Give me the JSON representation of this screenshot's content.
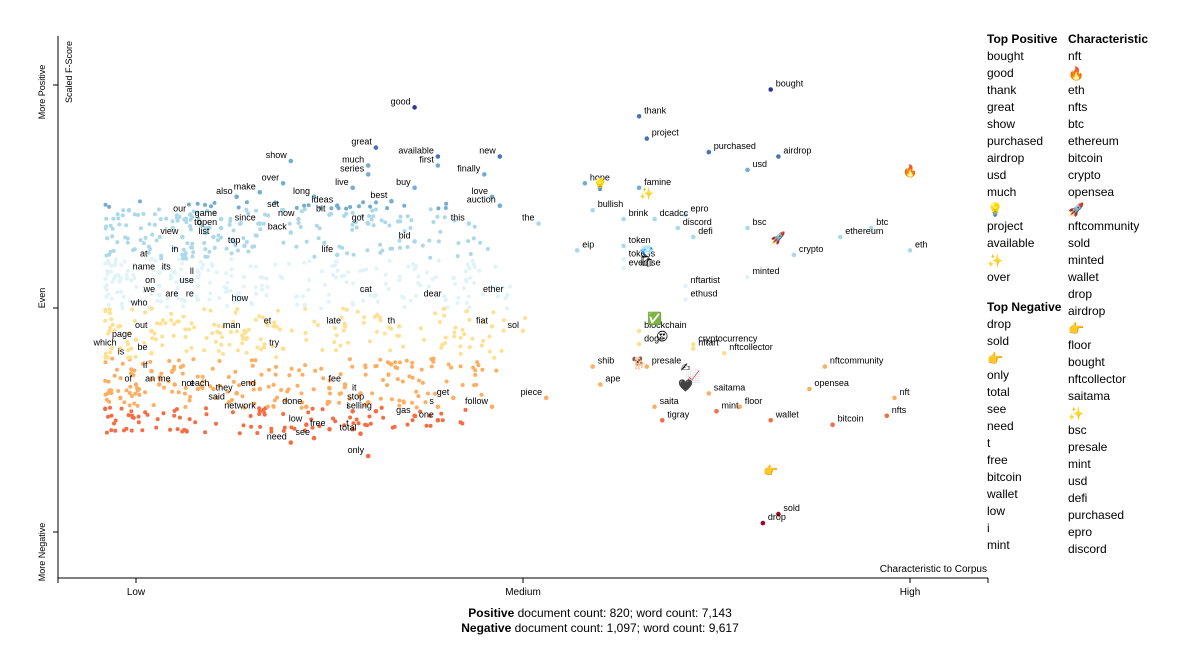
{
  "chart_data": {
    "type": "scatter",
    "title": "",
    "xlabel": "Characteristic to Corpus",
    "ylabel": "Scaled F-Score",
    "x_ticks": [
      "Low",
      "Medium",
      "High"
    ],
    "y_ticks": [
      "More Positive",
      "Even",
      "More Negative"
    ],
    "xlim": [
      0,
      1
    ],
    "ylim": [
      0,
      1
    ],
    "grid": false,
    "color_scale": [
      "#313695",
      "#4575b4",
      "#74add1",
      "#abd9e9",
      "#e0f3f8",
      "#fee090",
      "#fdae61",
      "#f46d43",
      "#d73027",
      "#a50026"
    ],
    "labeled_terms": [
      {
        "term": "good",
        "x": 0.36,
        "y": 0.95
      },
      {
        "term": "bought",
        "x": 0.82,
        "y": 0.99
      },
      {
        "term": "thank",
        "x": 0.65,
        "y": 0.93
      },
      {
        "term": "project",
        "x": 0.66,
        "y": 0.88
      },
      {
        "term": "purchased",
        "x": 0.74,
        "y": 0.85
      },
      {
        "term": "airdrop",
        "x": 0.83,
        "y": 0.84
      },
      {
        "term": "usd",
        "x": 0.79,
        "y": 0.81
      },
      {
        "term": "show",
        "x": 0.2,
        "y": 0.83
      },
      {
        "term": "great",
        "x": 0.31,
        "y": 0.86
      },
      {
        "term": "available",
        "x": 0.39,
        "y": 0.84
      },
      {
        "term": "new",
        "x": 0.47,
        "y": 0.84
      },
      {
        "term": "much",
        "x": 0.3,
        "y": 0.82
      },
      {
        "term": "first",
        "x": 0.39,
        "y": 0.82
      },
      {
        "term": "series",
        "x": 0.3,
        "y": 0.8
      },
      {
        "term": "finally",
        "x": 0.45,
        "y": 0.8
      },
      {
        "term": "over",
        "x": 0.19,
        "y": 0.78
      },
      {
        "term": "hope",
        "x": 0.58,
        "y": 0.78
      },
      {
        "term": "famine",
        "x": 0.65,
        "y": 0.77
      },
      {
        "term": "make",
        "x": 0.16,
        "y": 0.76
      },
      {
        "term": "live",
        "x": 0.28,
        "y": 0.77
      },
      {
        "term": "buy",
        "x": 0.36,
        "y": 0.77
      },
      {
        "term": "also",
        "x": 0.13,
        "y": 0.75
      },
      {
        "term": "long",
        "x": 0.23,
        "y": 0.75
      },
      {
        "term": "love",
        "x": 0.46,
        "y": 0.75
      },
      {
        "term": "ideas",
        "x": 0.26,
        "y": 0.73
      },
      {
        "term": "best",
        "x": 0.33,
        "y": 0.74
      },
      {
        "term": "set",
        "x": 0.19,
        "y": 0.72
      },
      {
        "term": "auction",
        "x": 0.47,
        "y": 0.73
      },
      {
        "term": "bullish",
        "x": 0.59,
        "y": 0.72
      },
      {
        "term": "epro",
        "x": 0.71,
        "y": 0.71
      },
      {
        "term": "our",
        "x": 0.07,
        "y": 0.71
      },
      {
        "term": "bit",
        "x": 0.25,
        "y": 0.71
      },
      {
        "term": "game",
        "x": 0.11,
        "y": 0.7
      },
      {
        "term": "now",
        "x": 0.21,
        "y": 0.7
      },
      {
        "term": "brink",
        "x": 0.63,
        "y": 0.7
      },
      {
        "term": "dcadcc",
        "x": 0.67,
        "y": 0.7
      },
      {
        "term": "since",
        "x": 0.16,
        "y": 0.69
      },
      {
        "term": "got",
        "x": 0.3,
        "y": 0.69
      },
      {
        "term": "this",
        "x": 0.43,
        "y": 0.69
      },
      {
        "term": "the",
        "x": 0.52,
        "y": 0.69
      },
      {
        "term": "to",
        "x": 0.09,
        "y": 0.68
      },
      {
        "term": "open",
        "x": 0.11,
        "y": 0.68
      },
      {
        "term": "back",
        "x": 0.2,
        "y": 0.67
      },
      {
        "term": "discord",
        "x": 0.7,
        "y": 0.68
      },
      {
        "term": "bsc",
        "x": 0.79,
        "y": 0.68
      },
      {
        "term": "btc",
        "x": 0.95,
        "y": 0.68
      },
      {
        "term": "view",
        "x": 0.06,
        "y": 0.66
      },
      {
        "term": "list",
        "x": 0.1,
        "y": 0.66
      },
      {
        "term": "bid",
        "x": 0.36,
        "y": 0.65
      },
      {
        "term": "defi",
        "x": 0.72,
        "y": 0.66
      },
      {
        "term": "ethereum",
        "x": 0.91,
        "y": 0.66
      },
      {
        "term": "top",
        "x": 0.14,
        "y": 0.64
      },
      {
        "term": "token",
        "x": 0.63,
        "y": 0.64
      },
      {
        "term": "eip",
        "x": 0.57,
        "y": 0.63
      },
      {
        "term": "eth",
        "x": 1.0,
        "y": 0.63
      },
      {
        "term": "crypto",
        "x": 0.85,
        "y": 0.62
      },
      {
        "term": "in",
        "x": 0.06,
        "y": 0.62
      },
      {
        "term": "life",
        "x": 0.26,
        "y": 0.62
      },
      {
        "term": "at",
        "x": 0.02,
        "y": 0.61
      },
      {
        "term": "tokens",
        "x": 0.63,
        "y": 0.61
      },
      {
        "term": "everrise",
        "x": 0.63,
        "y": 0.59
      },
      {
        "term": "name",
        "x": 0.03,
        "y": 0.58
      },
      {
        "term": "its",
        "x": 0.05,
        "y": 0.58
      },
      {
        "term": "minted",
        "x": 0.79,
        "y": 0.57
      },
      {
        "term": "ll",
        "x": 0.08,
        "y": 0.57
      },
      {
        "term": "use",
        "x": 0.08,
        "y": 0.55
      },
      {
        "term": "nftartist",
        "x": 0.71,
        "y": 0.55
      },
      {
        "term": "on",
        "x": 0.03,
        "y": 0.55
      },
      {
        "term": "cat",
        "x": 0.31,
        "y": 0.53
      },
      {
        "term": "dear",
        "x": 0.4,
        "y": 0.52
      },
      {
        "term": "ether",
        "x": 0.48,
        "y": 0.53
      },
      {
        "term": "ethusd",
        "x": 0.71,
        "y": 0.52
      },
      {
        "term": "we",
        "x": 0.03,
        "y": 0.53
      },
      {
        "term": "are",
        "x": 0.06,
        "y": 0.52
      },
      {
        "term": "re",
        "x": 0.08,
        "y": 0.52
      },
      {
        "term": "how",
        "x": 0.15,
        "y": 0.51
      },
      {
        "term": "who",
        "x": 0.02,
        "y": 0.5
      },
      {
        "term": "out",
        "x": 0.02,
        "y": 0.45
      },
      {
        "term": "late",
        "x": 0.27,
        "y": 0.46
      },
      {
        "term": "th",
        "x": 0.34,
        "y": 0.46
      },
      {
        "term": "man",
        "x": 0.14,
        "y": 0.45
      },
      {
        "term": "et",
        "x": 0.18,
        "y": 0.46
      },
      {
        "term": "fiat",
        "x": 0.46,
        "y": 0.46
      },
      {
        "term": "sol",
        "x": 0.5,
        "y": 0.45
      },
      {
        "term": "blockchain",
        "x": 0.65,
        "y": 0.45
      },
      {
        "term": "page",
        "x": 0.0,
        "y": 0.43
      },
      {
        "term": "cryptocurrency",
        "x": 0.72,
        "y": 0.42
      },
      {
        "term": "doge",
        "x": 0.65,
        "y": 0.42
      },
      {
        "term": "nftart",
        "x": 0.72,
        "y": 0.41
      },
      {
        "term": "which",
        "x": -0.02,
        "y": 0.41
      },
      {
        "term": "be",
        "x": 0.02,
        "y": 0.4
      },
      {
        "term": "try",
        "x": 0.19,
        "y": 0.41
      },
      {
        "term": "nftcollector",
        "x": 0.76,
        "y": 0.4
      },
      {
        "term": "is",
        "x": -0.01,
        "y": 0.39
      },
      {
        "term": "presale",
        "x": 0.66,
        "y": 0.37
      },
      {
        "term": "shib",
        "x": 0.59,
        "y": 0.37
      },
      {
        "term": "nftcommunity",
        "x": 0.89,
        "y": 0.37
      },
      {
        "term": "if",
        "x": 0.02,
        "y": 0.36
      },
      {
        "term": "ape",
        "x": 0.6,
        "y": 0.33
      },
      {
        "term": "opensea",
        "x": 0.87,
        "y": 0.32
      },
      {
        "term": "of",
        "x": 0.0,
        "y": 0.33
      },
      {
        "term": "an",
        "x": 0.03,
        "y": 0.33
      },
      {
        "term": "me",
        "x": 0.05,
        "y": 0.33
      },
      {
        "term": "each",
        "x": 0.1,
        "y": 0.32
      },
      {
        "term": "end",
        "x": 0.16,
        "y": 0.32
      },
      {
        "term": "not",
        "x": 0.08,
        "y": 0.32
      },
      {
        "term": "it",
        "x": 0.29,
        "y": 0.31
      },
      {
        "term": "fee",
        "x": 0.27,
        "y": 0.33
      },
      {
        "term": "they",
        "x": 0.13,
        "y": 0.31
      },
      {
        "term": "saitama",
        "x": 0.74,
        "y": 0.31
      },
      {
        "term": "nft",
        "x": 0.98,
        "y": 0.3
      },
      {
        "term": "get",
        "x": 0.41,
        "y": 0.3
      },
      {
        "term": "piece",
        "x": 0.53,
        "y": 0.3
      },
      {
        "term": "said",
        "x": 0.12,
        "y": 0.29
      },
      {
        "term": "done",
        "x": 0.22,
        "y": 0.28
      },
      {
        "term": "stop",
        "x": 0.3,
        "y": 0.29
      },
      {
        "term": "s",
        "x": 0.39,
        "y": 0.28
      },
      {
        "term": "follow",
        "x": 0.46,
        "y": 0.28
      },
      {
        "term": "saita",
        "x": 0.67,
        "y": 0.28
      },
      {
        "term": "floor",
        "x": 0.78,
        "y": 0.28
      },
      {
        "term": "mint",
        "x": 0.75,
        "y": 0.27
      },
      {
        "term": "network",
        "x": 0.16,
        "y": 0.27
      },
      {
        "term": "i",
        "x": 0.28,
        "y": 0.27
      },
      {
        "term": "selling",
        "x": 0.31,
        "y": 0.27
      },
      {
        "term": "gas",
        "x": 0.36,
        "y": 0.26
      },
      {
        "term": "one",
        "x": 0.39,
        "y": 0.25
      },
      {
        "term": "nfts",
        "x": 0.97,
        "y": 0.26
      },
      {
        "term": "tigray",
        "x": 0.68,
        "y": 0.25
      },
      {
        "term": "wallet",
        "x": 0.82,
        "y": 0.25
      },
      {
        "term": "bitcoin",
        "x": 0.9,
        "y": 0.24
      },
      {
        "term": "low",
        "x": 0.22,
        "y": 0.24
      },
      {
        "term": "free",
        "x": 0.25,
        "y": 0.23
      },
      {
        "term": "t",
        "x": 0.28,
        "y": 0.23
      },
      {
        "term": "total",
        "x": 0.29,
        "y": 0.22
      },
      {
        "term": "see",
        "x": 0.23,
        "y": 0.21
      },
      {
        "term": "need",
        "x": 0.2,
        "y": 0.2
      },
      {
        "term": "only",
        "x": 0.3,
        "y": 0.17
      },
      {
        "term": "sold",
        "x": 0.83,
        "y": 0.04
      },
      {
        "term": "drop",
        "x": 0.81,
        "y": 0.02
      }
    ],
    "emoji_points": [
      {
        "emoji": "🔥",
        "x": 1.0,
        "y": 0.81
      },
      {
        "emoji": "💡",
        "x": 0.6,
        "y": 0.78
      },
      {
        "emoji": "✨",
        "x": 0.66,
        "y": 0.76
      },
      {
        "emoji": "🚀",
        "x": 0.83,
        "y": 0.66
      },
      {
        "emoji": "💎",
        "x": 0.66,
        "y": 0.63
      },
      {
        "emoji": "🛍",
        "x": 0.66,
        "y": 0.61
      },
      {
        "emoji": "✅",
        "x": 0.67,
        "y": 0.48
      },
      {
        "emoji": "😍",
        "x": 0.68,
        "y": 0.44
      },
      {
        "emoji": "🐕",
        "x": 0.65,
        "y": 0.38
      },
      {
        "emoji": "✍",
        "x": 0.71,
        "y": 0.37
      },
      {
        "emoji": "📈",
        "x": 0.72,
        "y": 0.35
      },
      {
        "emoji": "🖤",
        "x": 0.71,
        "y": 0.33
      },
      {
        "emoji": "👉",
        "x": 0.82,
        "y": 0.14
      }
    ]
  },
  "axes": {
    "x_label": "Characteristic to Corpus",
    "y_label": "Scaled F-Score",
    "x_ticks": [
      "Low",
      "Medium",
      "High"
    ],
    "y_ticks": [
      "More Positive",
      "Even",
      "More Negative"
    ]
  },
  "side": {
    "top_positive_title": "Top Positive",
    "top_positive": [
      "bought",
      "good",
      "thank",
      "great",
      "show",
      "purchased",
      "airdrop",
      "usd",
      "much",
      "💡",
      "project",
      "available",
      "✨",
      "over"
    ],
    "top_negative_title": "Top Negative",
    "top_negative": [
      "drop",
      "sold",
      "👉",
      "only",
      "total",
      "see",
      "need",
      "t",
      "free",
      "bitcoin",
      "wallet",
      "low",
      "i",
      "mint"
    ],
    "characteristic_title": "Characteristic",
    "characteristic": [
      "nft",
      "🔥",
      "eth",
      "nfts",
      "btc",
      "ethereum",
      "bitcoin",
      "crypto",
      "opensea",
      "🚀",
      "nftcommunity",
      "sold",
      "minted",
      "wallet",
      "drop",
      "airdrop",
      "👉",
      "floor",
      "bought",
      "nftcollector",
      "saitama",
      "✨",
      "bsc",
      "presale",
      "mint",
      "usd",
      "defi",
      "purchased",
      "epro",
      "discord"
    ]
  },
  "footer": {
    "positive_label": "Positive",
    "positive_text": " document count: 820; word count: 7,143",
    "negative_label": "Negative",
    "negative_text": " document count: 1,097; word count: 9,617"
  }
}
